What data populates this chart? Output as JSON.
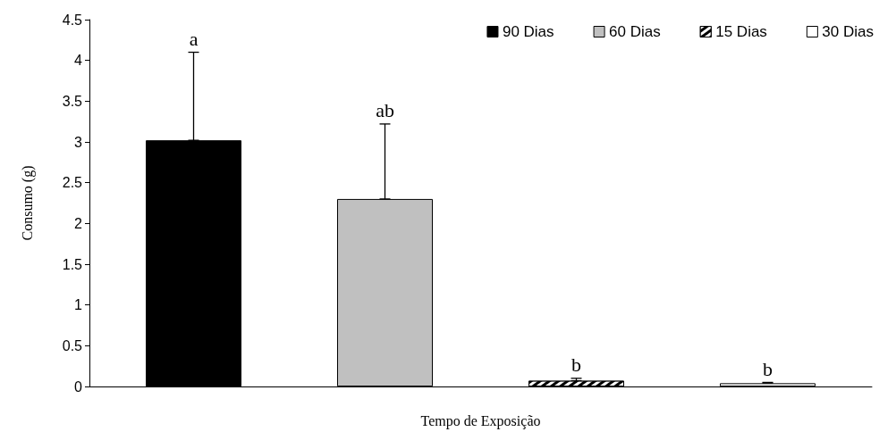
{
  "chart_data": {
    "type": "bar",
    "xlabel": "Tempo de Exposição",
    "ylabel": "Consumo (g)",
    "categories": [
      null
    ],
    "series": [
      {
        "name": "90 Dias",
        "color": "#000000",
        "values": [
          3.02
        ],
        "errors": [
          [
            3.02,
            4.1
          ]
        ]
      },
      {
        "name": "60 Dias",
        "color": "#c0c0c0",
        "values": [
          2.3
        ],
        "errors": [
          [
            2.3,
            3.22
          ]
        ]
      },
      {
        "name": "15 Dias",
        "color": "#000000",
        "values": [
          0.07
        ],
        "errors": [
          [
            0.07,
            0.1
          ]
        ]
      },
      {
        "name": "30 Dias",
        "color": "#ffffff",
        "values": [
          0.04
        ],
        "errors": [
          [
            0.04,
            0.05
          ]
        ]
      }
    ],
    "ylim": [
      0,
      4.5
    ],
    "yticks": [
      0,
      0.5,
      1,
      1.5,
      2,
      2.5,
      3,
      3.5,
      4,
      4.5
    ],
    "annotations": [
      {
        "text": "a",
        "y": 4.1
      },
      {
        "text": "ab",
        "y": 3.22
      },
      {
        "text": "b",
        "y": 0.1
      },
      {
        "text": "b",
        "y": 0.05
      }
    ],
    "grid": false,
    "legend": "top right"
  }
}
